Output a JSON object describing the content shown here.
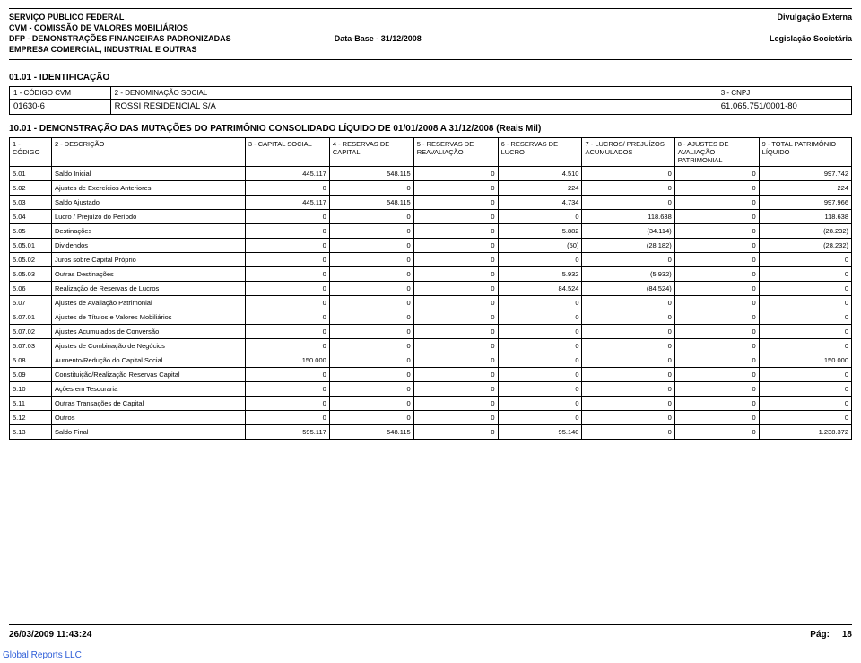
{
  "header": {
    "l1": "SERVIÇO PÚBLICO FEDERAL",
    "l2": "CVM - COMISSÃO DE VALORES MOBILIÁRIOS",
    "l3": "DFP - DEMONSTRAÇÕES FINANCEIRAS PADRONIZADAS",
    "l4": "EMPRESA COMERCIAL, INDUSTRIAL E OUTRAS",
    "center": "Data-Base - 31/12/2008",
    "r1": "Divulgação Externa",
    "r2": "Legislação Societária"
  },
  "id_section": {
    "title": "01.01 - IDENTIFICAÇÃO",
    "h1": "1 - CÓDIGO CVM",
    "h2": "2 - DENOMINAÇÃO SOCIAL",
    "h3": "3 - CNPJ",
    "v1": "01630-6",
    "v2": "ROSSI RESIDENCIAL S/A",
    "v3": "61.065.751/0001-80"
  },
  "main": {
    "title": "10.01 - DEMONSTRAÇÃO DAS MUTAÇÕES DO PATRIMÔNIO CONSOLIDADO LÍQUIDO DE 01/01/2008 A 31/12/2008 (Reais Mil)",
    "cols": [
      "1 - CÓDIGO",
      "2 - DESCRIÇÃO",
      "3 - CAPITAL SOCIAL",
      "4 - RESERVAS DE CAPITAL",
      "5 - RESERVAS DE REAVALIAÇÃO",
      "6 - RESERVAS DE LUCRO",
      "7 - LUCROS/ PREJUÍZOS ACUMULADOS",
      "8 - AJUSTES DE AVALIAÇÃO PATRIMONIAL",
      "9 - TOTAL PATRIMÔNIO LÍQUIDO"
    ],
    "col_widths": [
      "5%",
      "23%",
      "10%",
      "10%",
      "10%",
      "10%",
      "11%",
      "10%",
      "11%"
    ],
    "rows": [
      [
        "5.01",
        "Saldo Inicial",
        "445.117",
        "548.115",
        "0",
        "4.510",
        "0",
        "0",
        "997.742"
      ],
      [
        "5.02",
        "Ajustes de Exercícios Anteriores",
        "0",
        "0",
        "0",
        "224",
        "0",
        "0",
        "224"
      ],
      [
        "5.03",
        "Saldo Ajustado",
        "445.117",
        "548.115",
        "0",
        "4.734",
        "0",
        "0",
        "997.966"
      ],
      [
        "5.04",
        "Lucro / Prejuízo do Período",
        "0",
        "0",
        "0",
        "0",
        "118.638",
        "0",
        "118.638"
      ],
      [
        "5.05",
        "Destinações",
        "0",
        "0",
        "0",
        "5.882",
        "(34.114)",
        "0",
        "(28.232)"
      ],
      [
        "5.05.01",
        "Dividendos",
        "0",
        "0",
        "0",
        "(50)",
        "(28.182)",
        "0",
        "(28.232)"
      ],
      [
        "5.05.02",
        "Juros sobre Capital Próprio",
        "0",
        "0",
        "0",
        "0",
        "0",
        "0",
        "0"
      ],
      [
        "5.05.03",
        "Outras Destinações",
        "0",
        "0",
        "0",
        "5.932",
        "(5.932)",
        "0",
        "0"
      ],
      [
        "5.06",
        "Realização de Reservas de Lucros",
        "0",
        "0",
        "0",
        "84.524",
        "(84.524)",
        "0",
        "0"
      ],
      [
        "5.07",
        "Ajustes de Avaliação Patrimonial",
        "0",
        "0",
        "0",
        "0",
        "0",
        "0",
        "0"
      ],
      [
        "5.07.01",
        "Ajustes de Títulos e Valores Mobiliários",
        "0",
        "0",
        "0",
        "0",
        "0",
        "0",
        "0"
      ],
      [
        "5.07.02",
        "Ajustes Acumulados de Conversão",
        "0",
        "0",
        "0",
        "0",
        "0",
        "0",
        "0"
      ],
      [
        "5.07.03",
        "Ajustes de Combinação de Negócios",
        "0",
        "0",
        "0",
        "0",
        "0",
        "0",
        "0"
      ],
      [
        "5.08",
        "Aumento/Redução do Capital Social",
        "150.000",
        "0",
        "0",
        "0",
        "0",
        "0",
        "150.000"
      ],
      [
        "5.09",
        "Constituição/Realização Reservas Capital",
        "0",
        "0",
        "0",
        "0",
        "0",
        "0",
        "0"
      ],
      [
        "5.10",
        "Ações em Tesouraria",
        "0",
        "0",
        "0",
        "0",
        "0",
        "0",
        "0"
      ],
      [
        "5.11",
        "Outras Transações de Capital",
        "0",
        "0",
        "0",
        "0",
        "0",
        "0",
        "0"
      ],
      [
        "5.12",
        "Outros",
        "0",
        "0",
        "0",
        "0",
        "0",
        "0",
        "0"
      ],
      [
        "5.13",
        "Saldo Final",
        "595.117",
        "548.115",
        "0",
        "95.140",
        "0",
        "0",
        "1.238.372"
      ]
    ]
  },
  "footer": {
    "date": "26/03/2009 11:43:24",
    "page_label": "Pág:",
    "page_num": "18",
    "company": "Global Reports LLC"
  }
}
